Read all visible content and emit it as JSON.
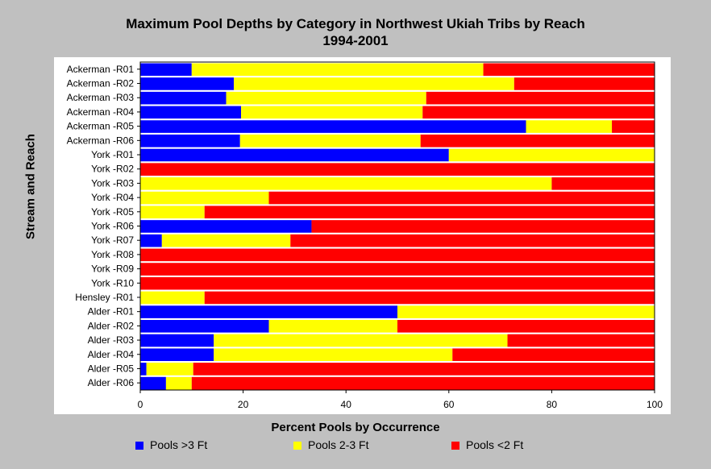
{
  "chart_data": {
    "type": "bar",
    "orientation": "horizontal",
    "stacked": true,
    "title": "Maximum Pool Depths by Category in Northwest Ukiah Tribs by Reach",
    "subtitle": "1994-2001",
    "xlabel": "Percent Pools by Occurrence",
    "ylabel": "Stream and Reach",
    "xlim": [
      0,
      100
    ],
    "xticks": [
      0,
      20,
      40,
      60,
      80,
      100
    ],
    "grid": true,
    "legend_position": "bottom",
    "categories": [
      "Ackerman -R01",
      "Ackerman -R02",
      "Ackerman -R03",
      "Ackerman -R04",
      "Ackerman -R05",
      "Ackerman -R06",
      "York -R01",
      "York -R02",
      "York -R03",
      "York -R04",
      "York -R05",
      "York -R06",
      "York -R07",
      "York -R08",
      "York -R09",
      "York -R10",
      "Hensley -R01",
      "Alder -R01",
      "Alder -R02",
      "Alder -R03",
      "Alder -R04",
      "Alder -R05",
      "Alder -R06"
    ],
    "series": [
      {
        "name": "Pools >3 Ft",
        "color": "#0000ff",
        "values": [
          10,
          18.2,
          16.7,
          19.6,
          75,
          19.4,
          60,
          0,
          0,
          0,
          0,
          33.3,
          4.2,
          0,
          0,
          0,
          0,
          50,
          25,
          14.3,
          14.3,
          1.2,
          5
        ]
      },
      {
        "name": "Pools 2-3 Ft",
        "color": "#ffff00",
        "values": [
          56.7,
          54.5,
          38.9,
          35.3,
          16.7,
          35.1,
          40,
          0,
          80,
          25,
          12.5,
          0,
          25,
          0,
          0,
          0,
          12.5,
          50,
          25,
          57.1,
          46.4,
          9.1,
          5
        ]
      },
      {
        "name": "Pools <2 Ft",
        "color": "#ff0000",
        "values": [
          33.3,
          27.3,
          44.4,
          45.1,
          8.3,
          45.5,
          0,
          100,
          20,
          75,
          87.5,
          66.7,
          70.8,
          100,
          100,
          100,
          87.5,
          0,
          50,
          28.6,
          39.3,
          89.7,
          90
        ]
      }
    ]
  }
}
